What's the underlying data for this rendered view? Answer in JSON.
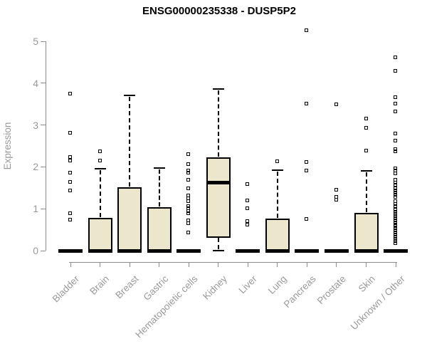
{
  "title": "ENSG00000235338 - DUSP5P2",
  "y_axis": {
    "label": "Expression",
    "ticks": [
      0,
      1,
      2,
      3,
      4,
      5
    ]
  },
  "colors": {
    "box_fill": "#ece7cc",
    "box_stroke": "#000000",
    "axis": "#8c8c8c",
    "tick_label": "#9a9a9a",
    "title": "#000000"
  },
  "chart_data": {
    "type": "boxplot",
    "title": "ENSG00000235338 - DUSP5P2",
    "xlabel": "",
    "ylabel": "Expression",
    "ylim": [
      0,
      5
    ],
    "y_ticks": [
      0,
      1,
      2,
      3,
      4,
      5
    ],
    "grid": false,
    "legend": false,
    "categories": [
      "Bladder",
      "Brain",
      "Breast",
      "Gastric",
      "Hematopoietic cells",
      "Kidney",
      "Liver",
      "Lung",
      "Pancreas",
      "Prostate",
      "Skin",
      "Unknown / Other"
    ],
    "groups": [
      {
        "label": "Bladder",
        "q1": 0,
        "median": 0,
        "q3": 0,
        "whisker_low": 0,
        "whisker_high": 0,
        "outliers": [
          3.74,
          2.81,
          2.23,
          2.15,
          1.85,
          1.63,
          1.43,
          0.88,
          0.73
        ]
      },
      {
        "label": "Brain",
        "q1": 0,
        "median": 0,
        "q3": 0.79,
        "whisker_low": 0,
        "whisker_high": 1.96,
        "outliers": [
          2.36,
          2.15
        ]
      },
      {
        "label": "Breast",
        "q1": 0,
        "median": 0,
        "q3": 1.52,
        "whisker_low": 0,
        "whisker_high": 3.71,
        "outliers": []
      },
      {
        "label": "Gastric",
        "q1": 0,
        "median": 0,
        "q3": 1.04,
        "whisker_low": 0,
        "whisker_high": 1.97,
        "outliers": []
      },
      {
        "label": "Hematopoietic cells",
        "q1": 0,
        "median": 0,
        "q3": 0,
        "whisker_low": 0,
        "whisker_high": 0,
        "outliers": [
          2.3,
          2.06,
          1.9,
          1.85,
          1.68,
          1.48,
          1.31,
          1.24,
          1.17,
          1.06,
          1.0,
          0.94,
          0.88,
          0.71,
          0.64,
          0.43
        ]
      },
      {
        "label": "Kidney",
        "q1": 0.3,
        "median": 1.62,
        "q3": 2.23,
        "whisker_low": 0,
        "whisker_high": 3.86,
        "outliers": []
      },
      {
        "label": "Liver",
        "q1": 0,
        "median": 0,
        "q3": 0,
        "whisker_low": 0,
        "whisker_high": 0,
        "outliers": [
          1.58,
          1.19,
          1.0,
          0.69,
          0.61
        ]
      },
      {
        "label": "Lung",
        "q1": 0,
        "median": 0,
        "q3": 0.76,
        "whisker_low": 0,
        "whisker_high": 1.92,
        "outliers": [
          2.13
        ]
      },
      {
        "label": "Pancreas",
        "q1": 0,
        "median": 0,
        "q3": 0,
        "whisker_low": 0,
        "whisker_high": 0,
        "outliers": [
          5.26,
          3.5,
          2.11,
          1.9,
          0.75
        ]
      },
      {
        "label": "Prostate",
        "q1": 0,
        "median": 0,
        "q3": 0,
        "whisker_low": 0,
        "whisker_high": 0,
        "outliers": [
          3.49,
          1.45,
          1.28,
          1.2
        ]
      },
      {
        "label": "Skin",
        "q1": 0,
        "median": 0,
        "q3": 0.9,
        "whisker_low": 0,
        "whisker_high": 1.9,
        "outliers": [
          3.15,
          2.93,
          2.38
        ]
      },
      {
        "label": "Unknown / Other",
        "q1": 0,
        "median": 0,
        "q3": 0,
        "whisker_low": 0,
        "whisker_high": 0,
        "outliers": [
          4.61,
          4.29,
          3.66,
          3.5,
          3.32,
          2.79,
          2.62,
          2.41,
          2.36,
          1.96,
          1.9,
          1.84,
          1.68,
          1.62,
          1.56,
          1.48,
          1.43,
          1.38,
          1.33,
          1.28,
          1.17,
          1.11,
          1.05,
          0.97,
          0.92,
          0.87,
          0.82,
          0.77,
          0.72,
          0.67,
          0.62,
          0.57,
          0.52,
          0.47,
          0.42,
          0.37,
          0.32,
          0.27,
          0.22,
          0.17
        ]
      }
    ]
  }
}
